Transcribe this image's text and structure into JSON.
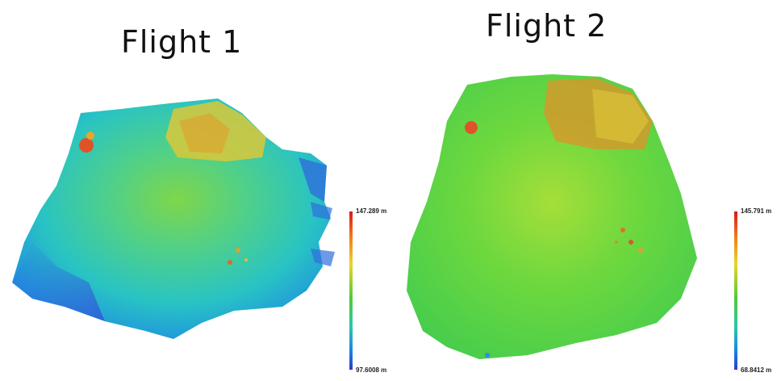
{
  "maps": [
    {
      "title": "Flight 1",
      "legend": {
        "max": "147.289 m",
        "min": "97.6008 m"
      }
    },
    {
      "title": "Flight 2",
      "legend": {
        "max": "145.791 m",
        "min": "68.8412 m"
      }
    }
  ]
}
